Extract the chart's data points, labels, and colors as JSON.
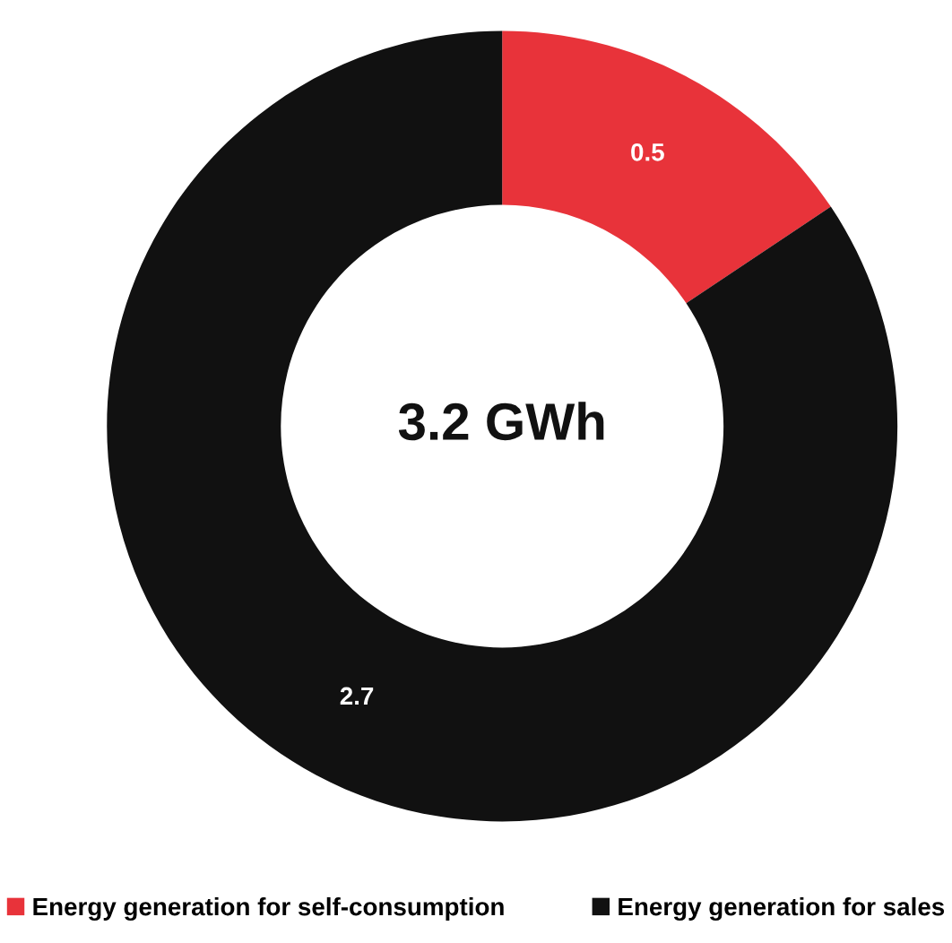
{
  "chart_data": {
    "type": "donut",
    "categories": [
      "Energy generation for self-consumption",
      "Energy generation for sales"
    ],
    "values": [
      0.5,
      2.7
    ],
    "colors": [
      "#e8333a",
      "#111111"
    ],
    "data_labels": true,
    "annotations": [
      "3.2 GWh"
    ],
    "legend": "bottom"
  }
}
